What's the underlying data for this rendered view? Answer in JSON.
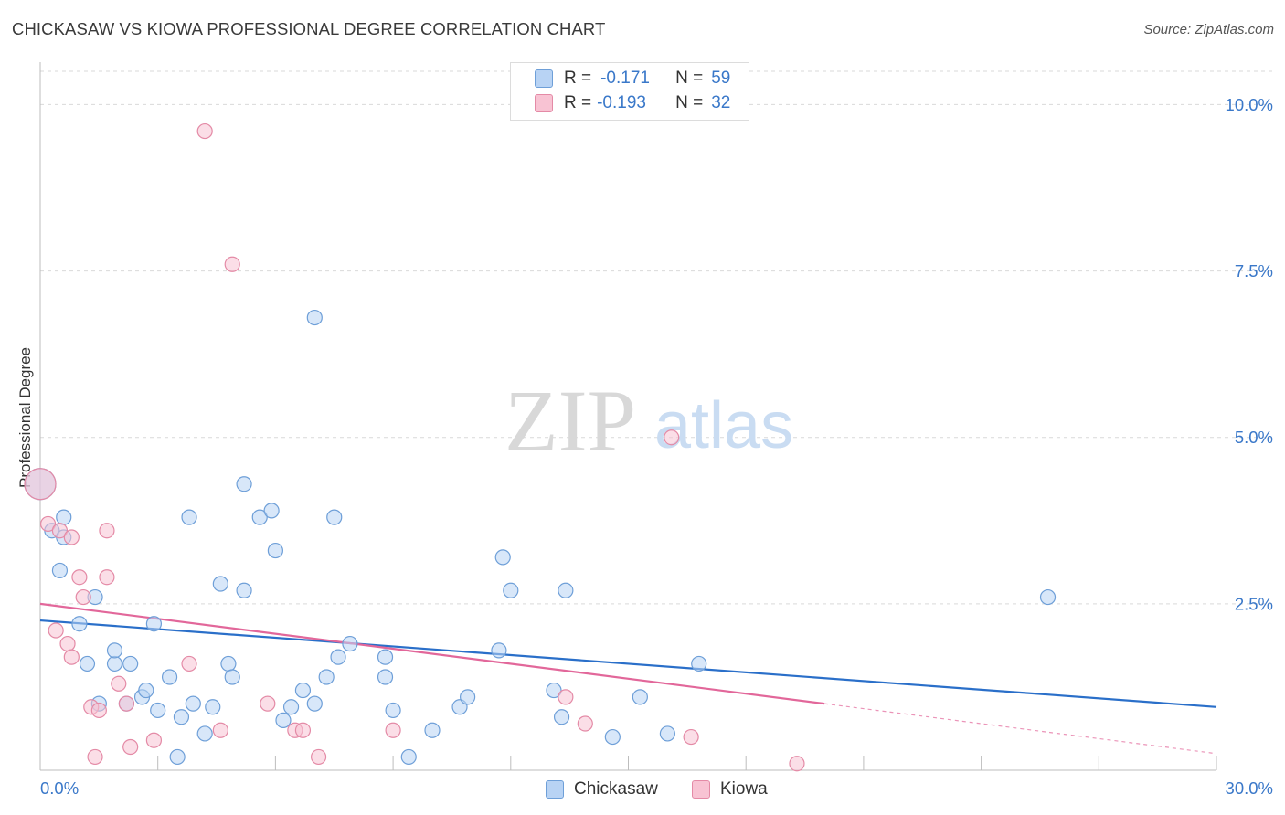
{
  "header": {
    "title": "CHICKASAW VS KIOWA PROFESSIONAL DEGREE CORRELATION CHART",
    "source": "Source: ZipAtlas.com"
  },
  "watermark": {
    "zip": "ZIP",
    "atlas": "atlas"
  },
  "legend": {
    "rows": [
      {
        "r_label": "R =",
        "r_value": "-0.171",
        "n_label": "N =",
        "n_value": "59"
      },
      {
        "r_label": "R =",
        "r_value": "-0.193",
        "n_label": "N =",
        "n_value": "32"
      }
    ]
  },
  "colors": {
    "chickasaw_fill": "#b8d3f4",
    "chickasaw_stroke": "#6e9fd8",
    "chickasaw_line": "#2a6fc9",
    "kiowa_fill": "#f8c3d3",
    "kiowa_stroke": "#e48aa6",
    "kiowa_line": "#e2679a",
    "accent_text": "#3a78c9",
    "grid": "#d9d9d9"
  },
  "chart_data": {
    "type": "scatter",
    "title": "CHICKASAW VS KIOWA PROFESSIONAL DEGREE CORRELATION CHART",
    "xlabel": "",
    "ylabel": "Professional Degree",
    "xlim": [
      0,
      30
    ],
    "ylim": [
      0,
      10.5
    ],
    "x_tick_labels": [
      "0.0%",
      "30.0%"
    ],
    "y_ticks": [
      2.5,
      5.0,
      7.5,
      10.0
    ],
    "y_tick_labels": [
      "2.5%",
      "5.0%",
      "7.5%",
      "10.0%"
    ],
    "grid": true,
    "legend_position": "bottom-center",
    "series": [
      {
        "name": "Chickasaw",
        "r": -0.171,
        "n": 59,
        "trend": {
          "x": [
            0,
            30
          ],
          "y": [
            2.25,
            0.95
          ]
        },
        "points": [
          {
            "x": 0.0,
            "y": 4.3,
            "big": true
          },
          {
            "x": 0.3,
            "y": 3.6
          },
          {
            "x": 0.6,
            "y": 3.8
          },
          {
            "x": 0.6,
            "y": 3.5
          },
          {
            "x": 0.5,
            "y": 3.0
          },
          {
            "x": 1.4,
            "y": 2.6
          },
          {
            "x": 1.0,
            "y": 2.2
          },
          {
            "x": 1.2,
            "y": 1.6
          },
          {
            "x": 1.9,
            "y": 1.6
          },
          {
            "x": 1.9,
            "y": 1.8
          },
          {
            "x": 2.3,
            "y": 1.6
          },
          {
            "x": 1.5,
            "y": 1.0
          },
          {
            "x": 2.2,
            "y": 1.0
          },
          {
            "x": 2.6,
            "y": 1.1
          },
          {
            "x": 2.7,
            "y": 1.2
          },
          {
            "x": 2.9,
            "y": 2.2
          },
          {
            "x": 3.0,
            "y": 0.9
          },
          {
            "x": 3.3,
            "y": 1.4
          },
          {
            "x": 3.5,
            "y": 0.2
          },
          {
            "x": 3.6,
            "y": 0.8
          },
          {
            "x": 3.8,
            "y": 3.8
          },
          {
            "x": 3.9,
            "y": 1.0
          },
          {
            "x": 4.2,
            "y": 0.55
          },
          {
            "x": 4.4,
            "y": 0.95
          },
          {
            "x": 4.6,
            "y": 2.8
          },
          {
            "x": 4.8,
            "y": 1.6
          },
          {
            "x": 4.9,
            "y": 1.4
          },
          {
            "x": 5.2,
            "y": 4.3
          },
          {
            "x": 5.2,
            "y": 2.7
          },
          {
            "x": 5.6,
            "y": 3.8
          },
          {
            "x": 5.9,
            "y": 3.9
          },
          {
            "x": 6.0,
            "y": 3.3
          },
          {
            "x": 6.2,
            "y": 0.75
          },
          {
            "x": 6.4,
            "y": 0.95
          },
          {
            "x": 6.7,
            "y": 1.2
          },
          {
            "x": 7.0,
            "y": 1.0
          },
          {
            "x": 7.0,
            "y": 6.8
          },
          {
            "x": 7.3,
            "y": 1.4
          },
          {
            "x": 7.5,
            "y": 3.8
          },
          {
            "x": 7.6,
            "y": 1.7
          },
          {
            "x": 7.9,
            "y": 1.9
          },
          {
            "x": 8.8,
            "y": 1.4
          },
          {
            "x": 8.8,
            "y": 1.7
          },
          {
            "x": 9.0,
            "y": 0.9
          },
          {
            "x": 9.4,
            "y": 0.2
          },
          {
            "x": 10.0,
            "y": 0.6
          },
          {
            "x": 10.7,
            "y": 0.95
          },
          {
            "x": 10.9,
            "y": 1.1
          },
          {
            "x": 11.7,
            "y": 1.8
          },
          {
            "x": 11.8,
            "y": 3.2
          },
          {
            "x": 12.0,
            "y": 2.7
          },
          {
            "x": 13.1,
            "y": 1.2
          },
          {
            "x": 13.3,
            "y": 0.8
          },
          {
            "x": 13.4,
            "y": 2.7
          },
          {
            "x": 14.6,
            "y": 0.5
          },
          {
            "x": 15.3,
            "y": 1.1
          },
          {
            "x": 16.0,
            "y": 0.55
          },
          {
            "x": 16.8,
            "y": 1.6
          },
          {
            "x": 25.7,
            "y": 2.6
          }
        ]
      },
      {
        "name": "Kiowa",
        "r": -0.193,
        "n": 32,
        "trend": {
          "x": [
            0,
            20
          ],
          "y": [
            2.5,
            1.0
          ]
        },
        "trend_dashed": {
          "x": [
            20,
            30
          ],
          "y": [
            1.0,
            0.25
          ]
        },
        "points": [
          {
            "x": 0.0,
            "y": 4.3,
            "big": true
          },
          {
            "x": 0.2,
            "y": 3.7
          },
          {
            "x": 0.5,
            "y": 3.6
          },
          {
            "x": 0.8,
            "y": 3.5
          },
          {
            "x": 1.0,
            "y": 2.9
          },
          {
            "x": 1.1,
            "y": 2.6
          },
          {
            "x": 0.4,
            "y": 2.1
          },
          {
            "x": 0.7,
            "y": 1.9
          },
          {
            "x": 0.8,
            "y": 1.7
          },
          {
            "x": 1.3,
            "y": 0.95
          },
          {
            "x": 1.5,
            "y": 0.9
          },
          {
            "x": 1.4,
            "y": 0.2
          },
          {
            "x": 1.7,
            "y": 2.9
          },
          {
            "x": 1.7,
            "y": 3.6
          },
          {
            "x": 2.0,
            "y": 1.3
          },
          {
            "x": 2.2,
            "y": 1.0
          },
          {
            "x": 2.3,
            "y": 0.35
          },
          {
            "x": 2.9,
            "y": 0.45
          },
          {
            "x": 3.8,
            "y": 1.6
          },
          {
            "x": 4.2,
            "y": 9.6
          },
          {
            "x": 4.6,
            "y": 0.6
          },
          {
            "x": 4.9,
            "y": 7.6
          },
          {
            "x": 5.8,
            "y": 1.0
          },
          {
            "x": 6.5,
            "y": 0.6
          },
          {
            "x": 6.7,
            "y": 0.6
          },
          {
            "x": 7.1,
            "y": 0.2
          },
          {
            "x": 9.0,
            "y": 0.6
          },
          {
            "x": 13.4,
            "y": 1.1
          },
          {
            "x": 13.9,
            "y": 0.7
          },
          {
            "x": 16.1,
            "y": 5.0
          },
          {
            "x": 16.6,
            "y": 0.5
          },
          {
            "x": 19.3,
            "y": 0.1
          }
        ]
      }
    ]
  }
}
